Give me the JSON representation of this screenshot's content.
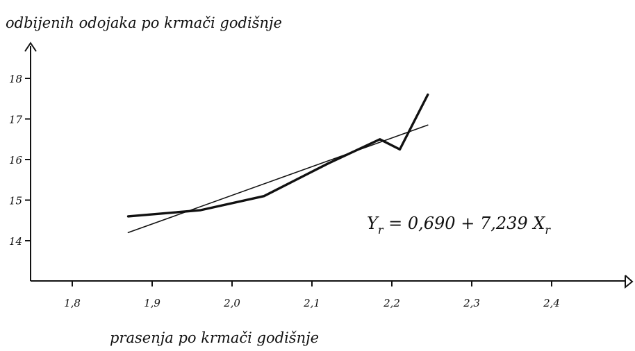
{
  "chart_data": {
    "type": "line",
    "title": "",
    "ylabel": "odbijenih odojaka po krmači godišnje",
    "xlabel": "prasenja po krmači godišnje",
    "xlim": [
      1.75,
      2.5
    ],
    "ylim": [
      13,
      18.6
    ],
    "x_ticks": [
      "1,8",
      "1,9",
      "2,0",
      "2,1",
      "2,2",
      "2,3",
      "2,4"
    ],
    "x_tick_values": [
      1.8,
      1.9,
      2.0,
      2.1,
      2.2,
      2.3,
      2.4
    ],
    "y_ticks": [
      "14",
      "15",
      "16",
      "17",
      "18"
    ],
    "y_tick_values": [
      14,
      15,
      16,
      17,
      18
    ],
    "grid": false,
    "series": [
      {
        "style": "thick",
        "x": [
          1.87,
          1.96,
          2.04,
          2.12,
          2.185,
          2.21,
          2.245
        ],
        "y": [
          14.6,
          14.75,
          15.1,
          15.9,
          16.5,
          16.25,
          17.6
        ]
      },
      {
        "style": "thin",
        "x": [
          1.87,
          2.245
        ],
        "y": [
          14.2,
          16.85
        ]
      }
    ],
    "annotation": {
      "lhs": "Y",
      "lhs_sub": "r",
      "rhs": " = 0,690 + 7,239 X",
      "rhs_sub": "r"
    }
  }
}
